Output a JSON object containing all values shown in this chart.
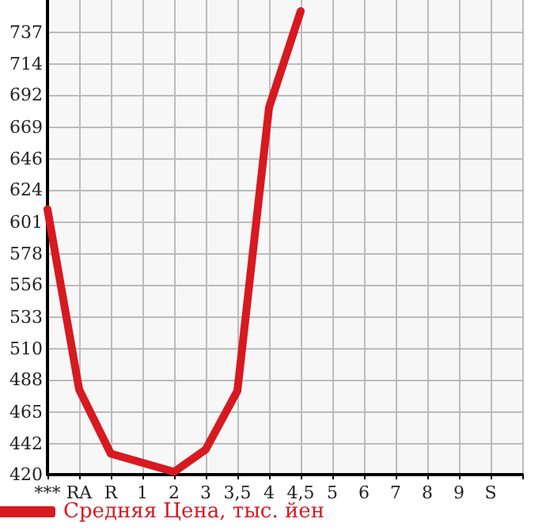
{
  "chart_data": {
    "type": "line",
    "categories": [
      "***",
      "RA",
      "R",
      "1",
      "2",
      "3",
      "3,5",
      "4",
      "4,5",
      "5",
      "6",
      "7",
      "8",
      "9",
      "S",
      null
    ],
    "series": [
      {
        "name": "Средняя Цена, тыс. йен",
        "color": "#d71920",
        "values": [
          610,
          481,
          435,
          null,
          422,
          438,
          480,
          683,
          752,
          null,
          null,
          null,
          null,
          null,
          null,
          null
        ]
      }
    ],
    "ylim": [
      420,
      760
    ],
    "yticks": [
      420,
      442,
      465,
      488,
      510,
      533,
      556,
      578,
      601,
      624,
      646,
      669,
      692,
      714,
      737
    ],
    "grid": true,
    "legend": "bottom left",
    "marker": "none",
    "line_style": "solid"
  }
}
